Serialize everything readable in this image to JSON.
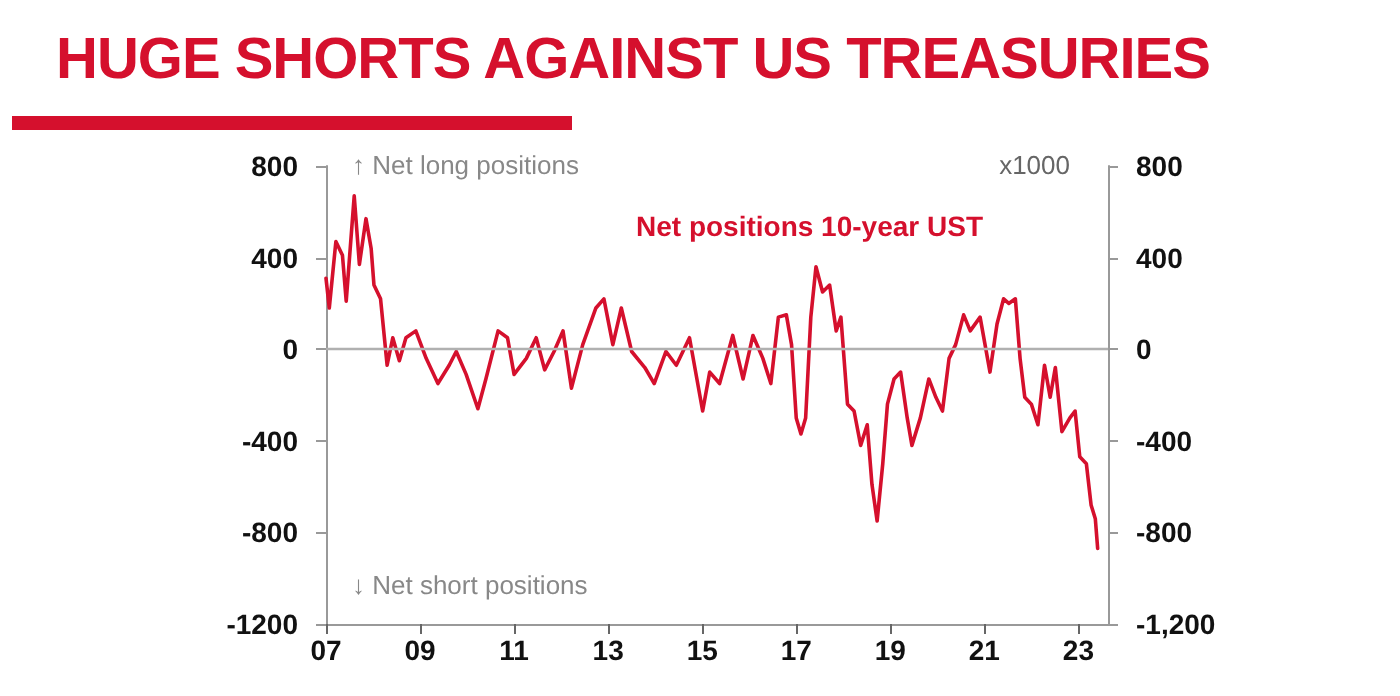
{
  "chart_data": {
    "type": "line",
    "title": "HUGE SHORTS AGAINST US TREASURIES",
    "annotations": [
      "↑ Net long positions",
      "↓ Net short positions",
      "x1000"
    ],
    "xlim": [
      2007,
      2023.63
    ],
    "xticks": [
      {
        "value": 2007,
        "label": "07"
      },
      {
        "value": 2009,
        "label": "09"
      },
      {
        "value": 2011,
        "label": "11"
      },
      {
        "value": 2013,
        "label": "13"
      },
      {
        "value": 2015,
        "label": "15"
      },
      {
        "value": 2017,
        "label": "17"
      },
      {
        "value": 2019,
        "label": "19"
      },
      {
        "value": 2021,
        "label": "21"
      },
      {
        "value": 2023,
        "label": "23"
      }
    ],
    "ylim": [
      -1200,
      800
    ],
    "yticks": [
      -1200,
      -800,
      -400,
      0,
      400,
      800
    ],
    "y2lim": [
      -1200,
      800
    ],
    "y2ticks": [
      {
        "value": -1200,
        "label": "-1,200"
      },
      -800,
      -400,
      0,
      400,
      800
    ],
    "grid": false,
    "legend": false,
    "marker": "none",
    "line_style": "solid",
    "ref_lines": [
      {
        "axis": "y",
        "value": 0,
        "color": "#b0b0b0"
      }
    ],
    "series": [
      {
        "name": "Net positions 10-year UST",
        "color": "#d5102d",
        "x": [
          2007.0,
          2007.07,
          2007.21,
          2007.35,
          2007.43,
          2007.6,
          2007.71,
          2007.85,
          2007.96,
          2008.02,
          2008.16,
          2008.3,
          2008.42,
          2008.56,
          2008.7,
          2008.91,
          2009.13,
          2009.38,
          2009.62,
          2009.77,
          2009.98,
          2010.23,
          2010.4,
          2010.66,
          2010.86,
          2011.0,
          2011.26,
          2011.47,
          2011.65,
          2011.85,
          2012.04,
          2012.22,
          2012.46,
          2012.74,
          2012.91,
          2013.1,
          2013.28,
          2013.5,
          2013.78,
          2013.98,
          2014.23,
          2014.45,
          2014.73,
          2015.01,
          2015.16,
          2015.37,
          2015.65,
          2015.87,
          2016.08,
          2016.29,
          2016.46,
          2016.62,
          2016.79,
          2016.9,
          2017.0,
          2017.1,
          2017.2,
          2017.31,
          2017.42,
          2017.56,
          2017.71,
          2017.85,
          2017.95,
          2018.09,
          2018.23,
          2018.37,
          2018.51,
          2018.61,
          2018.72,
          2018.84,
          2018.94,
          2019.08,
          2019.22,
          2019.36,
          2019.46,
          2019.64,
          2019.82,
          2019.97,
          2020.11,
          2020.25,
          2020.39,
          2020.56,
          2020.7,
          2020.91,
          2021.12,
          2021.27,
          2021.41,
          2021.52,
          2021.66,
          2021.76,
          2021.86,
          2022.0,
          2022.14,
          2022.28,
          2022.4,
          2022.51,
          2022.65,
          2022.82,
          2022.93,
          2023.03,
          2023.17,
          2023.27,
          2023.36,
          2023.41
        ],
        "values": [
          310,
          180,
          470,
          410,
          210,
          670,
          370,
          570,
          440,
          280,
          220,
          -70,
          50,
          -50,
          50,
          80,
          -40,
          -150,
          -70,
          -10,
          -110,
          -260,
          -130,
          80,
          50,
          -110,
          -40,
          50,
          -90,
          -10,
          80,
          -170,
          20,
          180,
          220,
          20,
          180,
          -10,
          -80,
          -150,
          -10,
          -70,
          50,
          -270,
          -100,
          -150,
          60,
          -130,
          60,
          -40,
          -150,
          140,
          150,
          20,
          -300,
          -370,
          -300,
          140,
          360,
          250,
          280,
          80,
          140,
          -240,
          -270,
          -420,
          -330,
          -590,
          -750,
          -500,
          -240,
          -130,
          -100,
          -300,
          -420,
          -300,
          -130,
          -210,
          -270,
          -40,
          20,
          150,
          80,
          140,
          -100,
          110,
          220,
          200,
          220,
          -40,
          -210,
          -240,
          -330,
          -70,
          -210,
          -80,
          -360,
          -300,
          -270,
          -470,
          -500,
          -680,
          -740,
          -870
        ]
      }
    ]
  }
}
